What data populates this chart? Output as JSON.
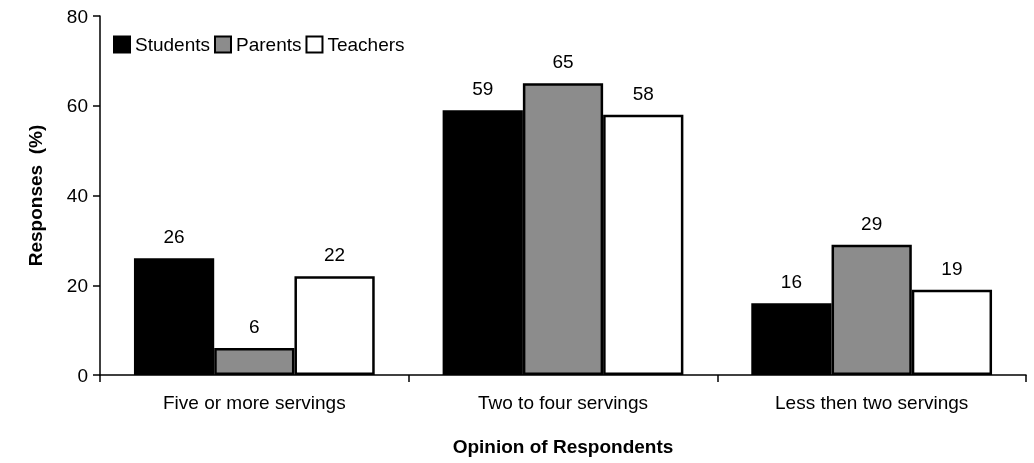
{
  "chart_data": {
    "type": "bar",
    "xlabel": "Opinion of Respondents",
    "ylabel": "Responses  (%)",
    "categories": [
      "Five or more servings",
      "Two to four servings",
      "Less then two servings"
    ],
    "series": [
      {
        "name": "Students",
        "color": "#000000",
        "values": [
          26,
          59,
          16
        ]
      },
      {
        "name": "Parents",
        "color": "#8c8c8c",
        "values": [
          6,
          65,
          29
        ]
      },
      {
        "name": "Teachers",
        "color": "#ffffff",
        "values": [
          22,
          58,
          19
        ]
      }
    ],
    "ylim": [
      0,
      80
    ],
    "yticks": [
      0,
      20,
      40,
      60,
      80
    ],
    "grid": false,
    "legend": "top left",
    "data_labels": true
  }
}
